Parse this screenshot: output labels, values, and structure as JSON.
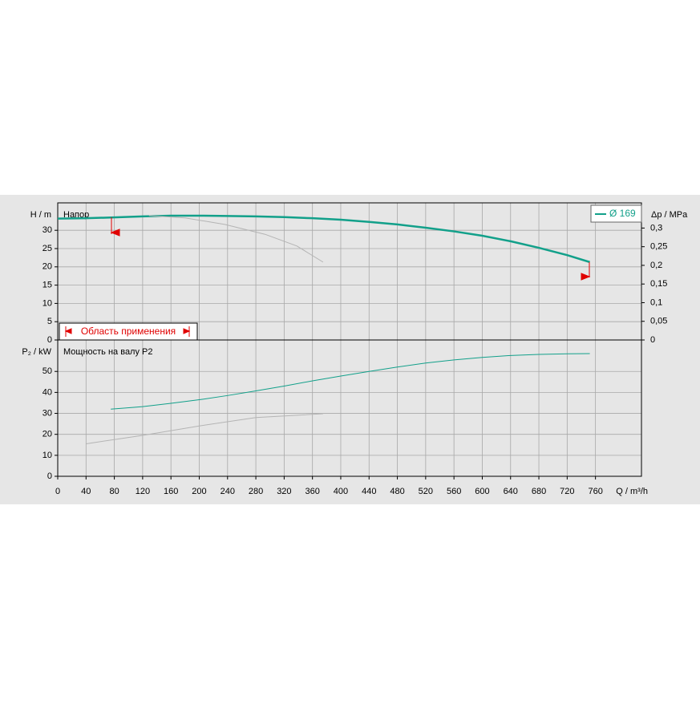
{
  "chart_data": [
    {
      "type": "line",
      "ylabel": "H / m",
      "y2label": "Δp / MPa",
      "annotation": "Напор",
      "range_label": "Область применения",
      "xlim": [
        0,
        825
      ],
      "xticks": [
        0,
        40,
        80,
        120,
        160,
        200,
        240,
        280,
        320,
        360,
        400,
        440,
        480,
        520,
        560,
        600,
        640,
        680,
        720,
        760
      ],
      "ylim": [
        0,
        37.5
      ],
      "yticks": [
        0,
        5,
        10,
        15,
        20,
        25,
        30
      ],
      "y2lim": [
        0,
        0.3675
      ],
      "y2ticks": [
        0,
        {
          "value": 0.05,
          "label": "0,05"
        },
        {
          "value": 0.1,
          "label": "0,1"
        },
        {
          "value": 0.15,
          "label": "0,15"
        },
        {
          "value": 0.2,
          "label": "0,2"
        },
        {
          "value": 0.25,
          "label": "0,25"
        },
        {
          "value": 0.3,
          "label": "0,3"
        }
      ],
      "grid": true,
      "series": [
        {
          "name": "Ø 169",
          "color": "#12a08a",
          "x": [
            0,
            40,
            75,
            120,
            160,
            200,
            240,
            280,
            320,
            360,
            400,
            440,
            480,
            520,
            560,
            600,
            640,
            680,
            720,
            752
          ],
          "values": [
            33.2,
            33.3,
            33.5,
            33.8,
            34.0,
            34.0,
            33.9,
            33.8,
            33.6,
            33.3,
            32.9,
            32.3,
            31.6,
            30.7,
            29.7,
            28.5,
            27.0,
            25.2,
            23.2,
            21.3
          ]
        },
        {
          "color": "#b4b4b4",
          "x": [
            129,
            180,
            236,
            293,
            338,
            375
          ],
          "values": [
            34.0,
            33.4,
            31.6,
            28.9,
            25.7,
            21.3
          ]
        }
      ]
    },
    {
      "type": "line",
      "ylabel": "P₂ / kW",
      "xlabel": "Q / m³/h",
      "annotation": "Мощность на валу P2",
      "xlim": [
        0,
        825
      ],
      "xticks": [
        0,
        40,
        80,
        120,
        160,
        200,
        240,
        280,
        320,
        360,
        400,
        440,
        480,
        520,
        560,
        600,
        640,
        680,
        720,
        760
      ],
      "ylim": [
        0,
        65
      ],
      "yticks": [
        0,
        10,
        20,
        30,
        40,
        50
      ],
      "grid": true,
      "series": [
        {
          "color": "#12a08a",
          "x": [
            75,
            120,
            160,
            200,
            240,
            280,
            320,
            360,
            400,
            440,
            480,
            520,
            560,
            600,
            640,
            680,
            720,
            752
          ],
          "values": [
            32,
            33.2,
            34.8,
            36.5,
            38.5,
            40.7,
            43,
            45.5,
            47.8,
            50,
            52.1,
            54,
            55.5,
            56.7,
            57.6,
            58.1,
            58.4,
            58.5
          ]
        },
        {
          "color": "#b4b4b4",
          "x": [
            40,
            120,
            200,
            280,
            375
          ],
          "values": [
            15.5,
            19.5,
            24,
            28,
            29.8
          ]
        }
      ]
    }
  ]
}
